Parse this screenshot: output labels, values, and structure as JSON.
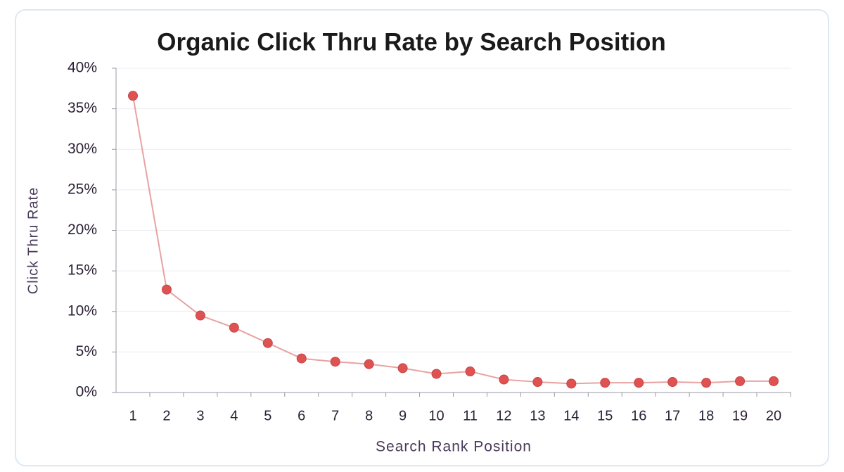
{
  "chart_data": {
    "type": "line",
    "title": "Organic Click Thru Rate by Search Position",
    "x_label": "Search Rank Position",
    "y_label": "Click Thru Rate",
    "categories": [
      "1",
      "2",
      "3",
      "4",
      "5",
      "6",
      "7",
      "8",
      "9",
      "10",
      "11",
      "12",
      "13",
      "14",
      "15",
      "16",
      "17",
      "18",
      "19",
      "20"
    ],
    "values": [
      36.6,
      12.7,
      9.5,
      8.0,
      6.1,
      4.2,
      3.8,
      3.5,
      3.0,
      2.3,
      2.6,
      1.6,
      1.3,
      1.1,
      1.2,
      1.2,
      1.3,
      1.2,
      1.4,
      1.4
    ],
    "color": "#e05252",
    "line_color": "#e8a2a2",
    "ylim": [
      0,
      40
    ],
    "yticks": [
      {
        "value": 0,
        "label": "0%"
      },
      {
        "value": 5,
        "label": "5%"
      },
      {
        "value": 10,
        "label": "10%"
      },
      {
        "value": 15,
        "label": "15%"
      },
      {
        "value": 20,
        "label": "20%"
      },
      {
        "value": 25,
        "label": "25%"
      },
      {
        "value": 30,
        "label": "30%"
      },
      {
        "value": 35,
        "label": "35%"
      },
      {
        "value": 40,
        "label": "40%"
      }
    ],
    "grid": true
  }
}
